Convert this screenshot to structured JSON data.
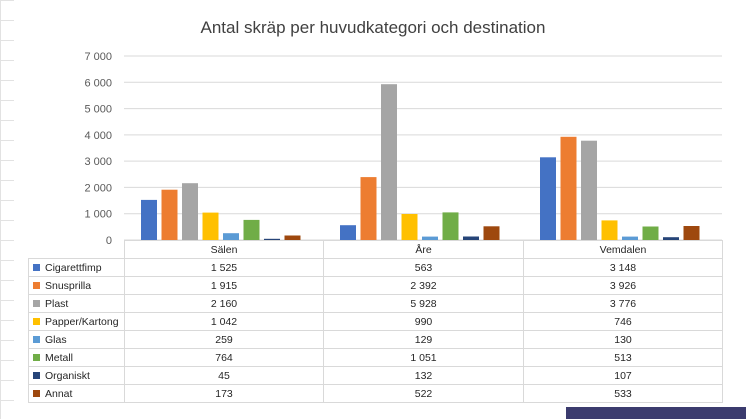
{
  "chart_data": {
    "type": "bar",
    "title": "Antal skräp per huvudkategori och destination",
    "categories": [
      "Sälen",
      "Åre",
      "Vemdalen"
    ],
    "ylim": [
      0,
      7000
    ],
    "yticks": [
      0,
      1000,
      2000,
      3000,
      4000,
      5000,
      6000,
      7000
    ],
    "ytick_labels": [
      "0",
      "1 000",
      "2 000",
      "3 000",
      "4 000",
      "5 000",
      "6 000",
      "7 000"
    ],
    "grid": true,
    "legend": "data-table-below",
    "series": [
      {
        "name": "Cigarettfimp",
        "color": "#4472c4",
        "values": [
          1525,
          563,
          3148
        ],
        "labels": [
          "1 525",
          "563",
          "3 148"
        ]
      },
      {
        "name": "Snusprilla",
        "color": "#ed7d31",
        "values": [
          1915,
          2392,
          3926
        ],
        "labels": [
          "1 915",
          "2 392",
          "3 926"
        ]
      },
      {
        "name": "Plast",
        "color": "#a5a5a5",
        "values": [
          2160,
          5928,
          3776
        ],
        "labels": [
          "2 160",
          "5 928",
          "3 776"
        ]
      },
      {
        "name": "Papper/Kartong",
        "color": "#ffc000",
        "values": [
          1042,
          990,
          746
        ],
        "labels": [
          "1 042",
          "990",
          "746"
        ]
      },
      {
        "name": "Glas",
        "color": "#5b9bd5",
        "values": [
          259,
          129,
          130
        ],
        "labels": [
          "259",
          "129",
          "130"
        ]
      },
      {
        "name": "Metall",
        "color": "#70ad47",
        "values": [
          764,
          1051,
          513
        ],
        "labels": [
          "764",
          "1 051",
          "513"
        ]
      },
      {
        "name": "Organiskt",
        "color": "#264478",
        "values": [
          45,
          132,
          107
        ],
        "labels": [
          "45",
          "132",
          "107"
        ]
      },
      {
        "name": "Annat",
        "color": "#9e480e",
        "values": [
          173,
          522,
          533
        ],
        "labels": [
          "173",
          "522",
          "533"
        ]
      }
    ]
  }
}
